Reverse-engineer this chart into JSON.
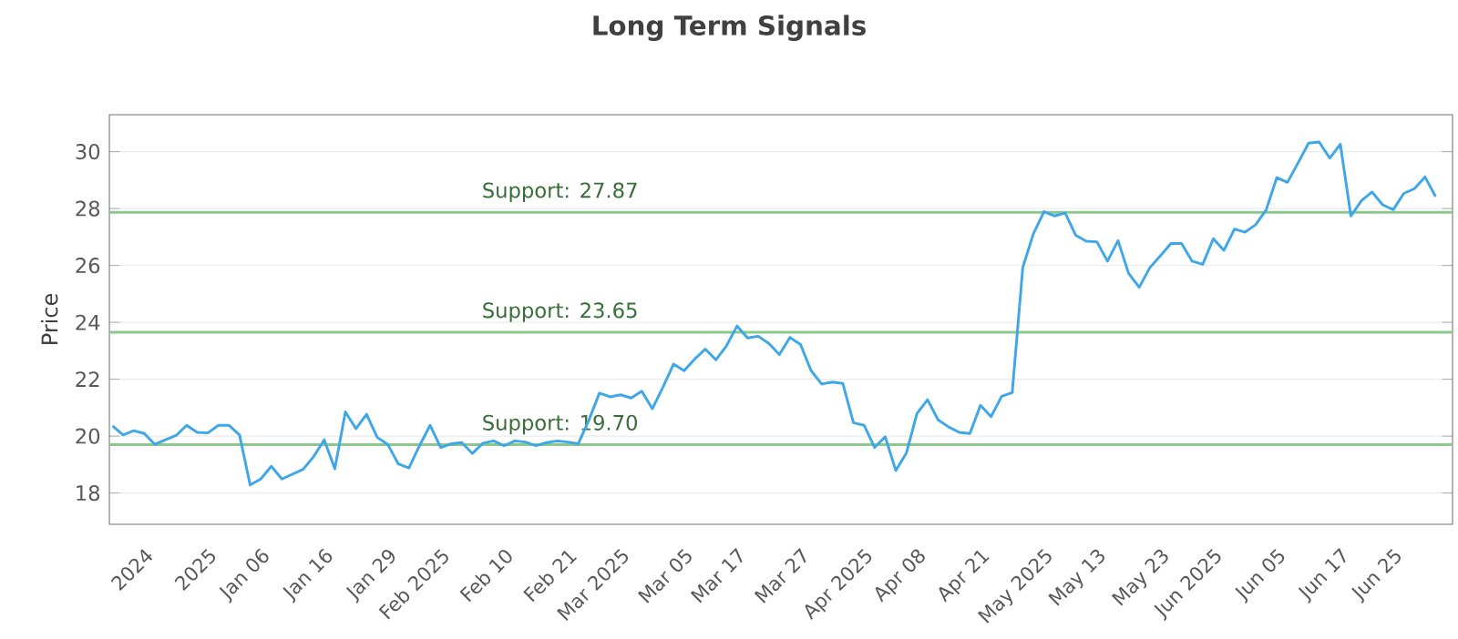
{
  "chart_data": {
    "type": "line",
    "title": "Long Term Signals",
    "ylabel": "Price",
    "categories": [
      null,
      null,
      null,
      "2024",
      null,
      null,
      null,
      null,
      null,
      "2025",
      null,
      null,
      null,
      null,
      "Jan 06",
      null,
      null,
      null,
      null,
      null,
      "Jan 16",
      null,
      null,
      null,
      null,
      null,
      "Jan 29",
      null,
      null,
      null,
      null,
      "Feb 2025",
      null,
      null,
      null,
      null,
      null,
      "Feb 10",
      null,
      null,
      null,
      null,
      null,
      "Feb 21",
      null,
      null,
      null,
      null,
      "Mar 2025",
      null,
      null,
      null,
      null,
      null,
      "Mar 05",
      null,
      null,
      null,
      null,
      "Mar 17",
      null,
      null,
      null,
      null,
      null,
      "Mar 27",
      null,
      null,
      null,
      null,
      null,
      "Apr 2025",
      null,
      null,
      null,
      null,
      "Apr 08",
      null,
      null,
      null,
      null,
      null,
      "Apr 21",
      null,
      null,
      null,
      null,
      null,
      "May 2025",
      null,
      null,
      null,
      null,
      "May 13",
      null,
      null,
      null,
      null,
      null,
      "May 23",
      null,
      null,
      null,
      null,
      "Jun 2025",
      null,
      null,
      null,
      null,
      null,
      "Jun 05",
      null,
      null,
      null,
      null,
      null,
      "Jun 17",
      null,
      null,
      null,
      null,
      "Jun 25",
      null,
      null,
      null,
      null
    ],
    "series": [
      {
        "color": "#3fa7e8",
        "values": [
          20.36,
          20.04,
          20.19,
          20.09,
          19.71,
          19.87,
          20.02,
          20.38,
          20.13,
          20.11,
          20.38,
          20.38,
          20.04,
          18.28,
          18.49,
          18.94,
          18.49,
          18.66,
          18.83,
          19.28,
          19.87,
          18.85,
          20.85,
          20.26,
          20.77,
          19.96,
          19.71,
          19.02,
          18.88,
          19.66,
          20.38,
          19.6,
          19.73,
          19.77,
          19.39,
          19.75,
          19.83,
          19.66,
          19.83,
          19.79,
          19.66,
          19.77,
          19.83,
          19.79,
          19.73,
          20.56,
          21.51,
          21.38,
          21.45,
          21.34,
          21.58,
          20.96,
          21.72,
          22.53,
          22.3,
          22.71,
          23.06,
          22.68,
          23.17,
          23.87,
          23.45,
          23.51,
          23.26,
          22.87,
          23.47,
          23.22,
          22.3,
          21.83,
          21.9,
          21.85,
          20.47,
          20.38,
          19.6,
          19.98,
          18.79,
          19.4,
          20.79,
          21.28,
          20.57,
          20.32,
          20.13,
          20.09,
          21.08,
          20.68,
          21.4,
          21.53,
          25.93,
          27.11,
          27.89,
          27.74,
          27.85,
          27.06,
          26.85,
          26.83,
          26.15,
          26.87,
          25.72,
          25.23,
          25.92,
          26.34,
          26.77,
          26.77,
          26.15,
          26.04,
          26.94,
          26.53,
          27.28,
          27.17,
          27.43,
          27.96,
          29.09,
          28.92,
          29.6,
          30.3,
          30.34,
          29.77,
          30.26,
          27.74,
          28.28,
          28.58,
          28.13,
          27.96,
          28.53,
          28.7,
          29.11,
          28.42
        ]
      }
    ],
    "ylim": [
      16.9,
      31.3
    ],
    "yticks": [
      18,
      20,
      22,
      24,
      26,
      28,
      30
    ],
    "grid": "y",
    "ref_lines": [
      {
        "axis": "y",
        "value": 27.87,
        "label": "Support: 27.87",
        "color": "#8cc88c"
      },
      {
        "axis": "y",
        "value": 23.65,
        "label": "Support: 23.65",
        "color": "#8cc88c"
      },
      {
        "axis": "y",
        "value": 19.7,
        "label": "Support: 19.70",
        "color": "#8cc88c"
      }
    ]
  }
}
